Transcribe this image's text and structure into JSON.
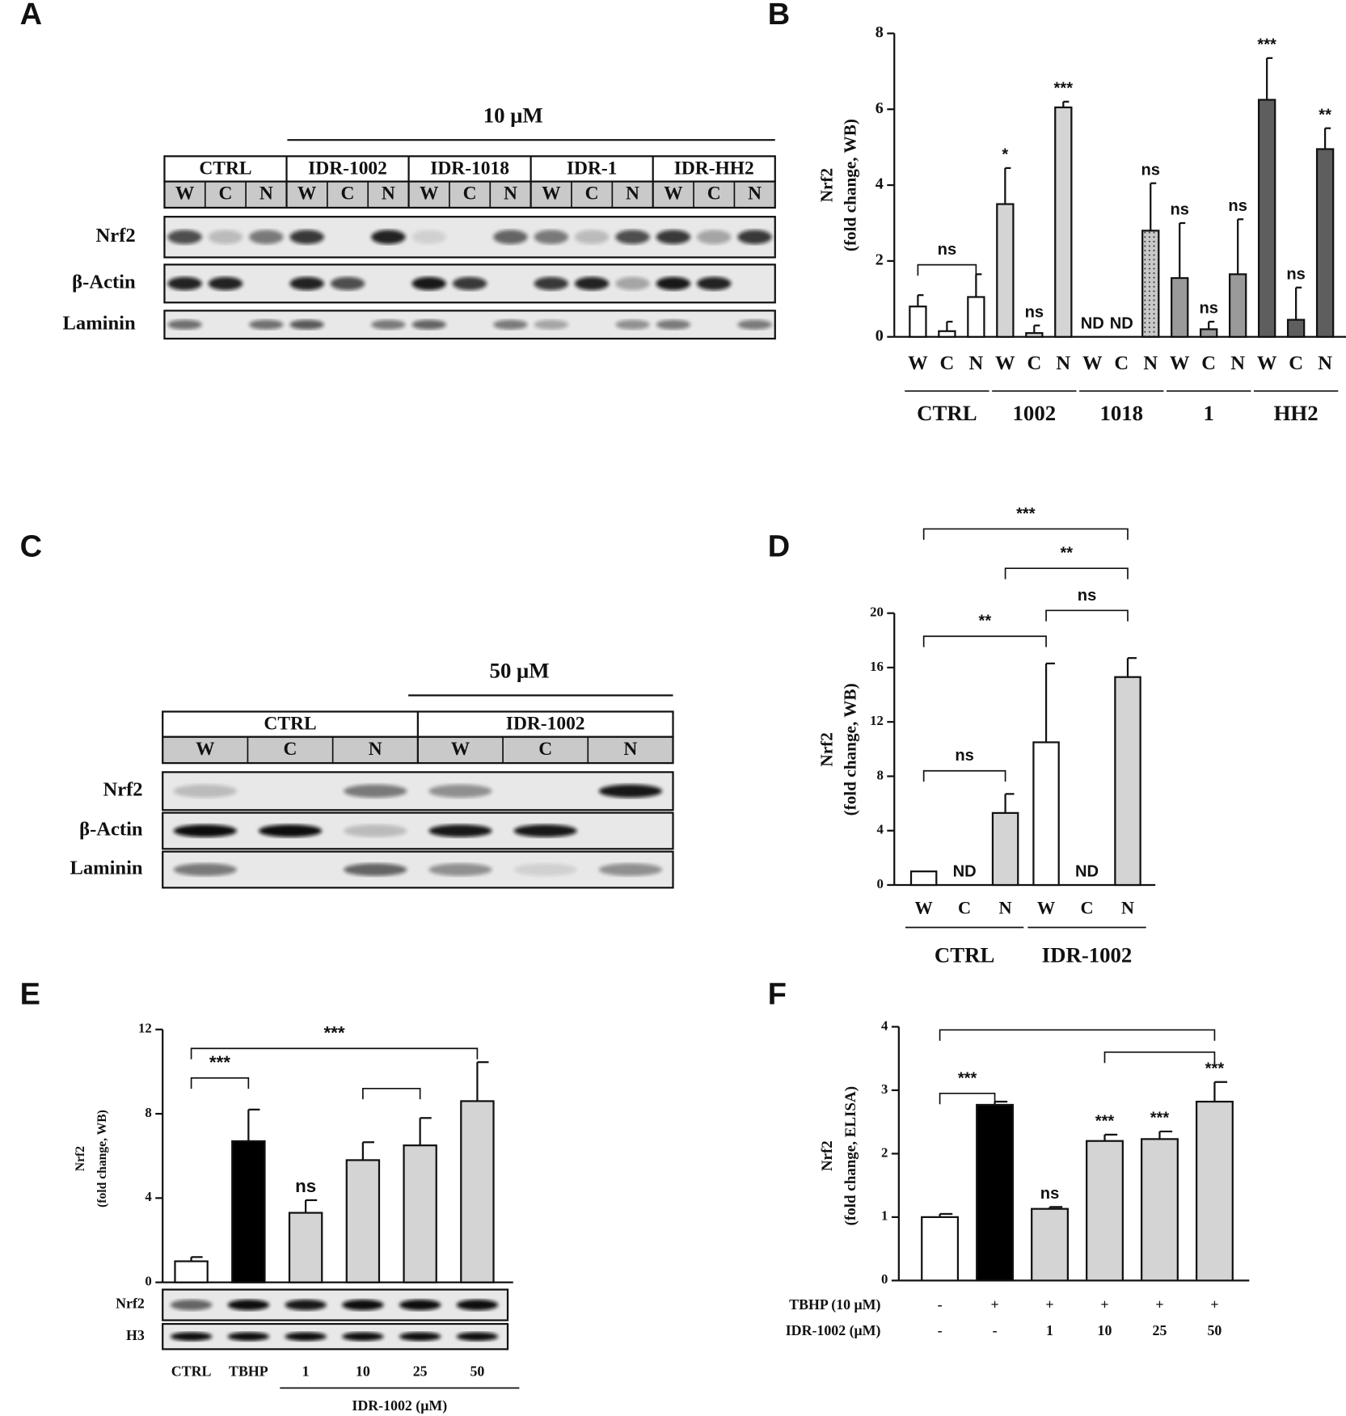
{
  "panels": [
    "A",
    "B",
    "C",
    "D",
    "E",
    "F"
  ],
  "blots": [
    {
      "concentration": "10 μM",
      "groups": [
        "CTRL",
        "IDR-1002",
        "IDR-1018",
        "IDR-1",
        "IDR-HH2"
      ],
      "lanes": [
        "W",
        "C",
        "N",
        "W",
        "C",
        "N",
        "W",
        "C",
        "N",
        "W",
        "C",
        "N",
        "W",
        "C",
        "N"
      ],
      "rows": [
        "Nrf2",
        "β-Actin",
        "Laminin"
      ]
    },
    {
      "concentration": "50 μM",
      "groups": [
        "CTRL",
        "IDR-1002"
      ],
      "lanes": [
        "W",
        "C",
        "N",
        "W",
        "C",
        "N"
      ],
      "rows": [
        "Nrf2",
        "β-Actin",
        "Laminin"
      ]
    },
    {
      "rows": [
        "Nrf2",
        "H3"
      ]
    }
  ],
  "chart_data": [
    {
      "type": "bar",
      "ylabel": [
        "Nrf2",
        "(fold change, WB)"
      ],
      "categories": [
        "W",
        "C",
        "N",
        "W",
        "C",
        "N",
        "W",
        "C",
        "N",
        "W",
        "C",
        "N",
        "W",
        "C",
        "N"
      ],
      "values": [
        0.8,
        0.15,
        1.05,
        3.5,
        0.1,
        6.05,
        null,
        null,
        2.8,
        1.55,
        0.2,
        1.65,
        6.25,
        0.45,
        4.95
      ],
      "errors": [
        0.3,
        0.25,
        0.6,
        0.95,
        0.2,
        0.15,
        null,
        null,
        1.25,
        1.45,
        0.2,
        1.45,
        1.1,
        0.85,
        0.55
      ],
      "colors": [
        "#ffffff",
        "#ffffff",
        "#ffffff",
        "#d4d4d4",
        "#d4d4d4",
        "#d4d4d4",
        "#c8c8c8",
        "#c8c8c8",
        "dots",
        "#9a9a9a",
        "#9a9a9a",
        "#9a9a9a",
        "#5e5e5e",
        "#5e5e5e",
        "#5e5e5e"
      ],
      "groups": [
        {
          "name": "CTRL",
          "from": 0,
          "to": 2
        },
        {
          "name": "1002",
          "from": 3,
          "to": 5
        },
        {
          "name": "1018",
          "from": 6,
          "to": 8
        },
        {
          "name": "1",
          "from": 9,
          "to": 11
        },
        {
          "name": "HH2",
          "from": 12,
          "to": 14
        }
      ],
      "annotations": [
        {
          "bar": 3,
          "text": "*"
        },
        {
          "bar": 4,
          "text": "ns"
        },
        {
          "bar": 5,
          "text": "***"
        },
        {
          "bar": 6,
          "text": "ND"
        },
        {
          "bar": 7,
          "text": "ND"
        },
        {
          "bar": 8,
          "text": "ns"
        },
        {
          "bar": 9,
          "text": "ns"
        },
        {
          "bar": 10,
          "text": "ns"
        },
        {
          "bar": 11,
          "text": "ns"
        },
        {
          "bar": 12,
          "text": "***"
        },
        {
          "bar": 13,
          "text": "ns"
        },
        {
          "bar": 14,
          "text": "**"
        }
      ],
      "brackets": [
        {
          "from": 0,
          "to": 2,
          "y": 1.9,
          "text": "ns"
        }
      ],
      "ylim": [
        0,
        8
      ],
      "yticks": [
        0,
        2,
        4,
        6,
        8
      ]
    },
    {
      "type": "bar",
      "ylabel": [
        "Nrf2",
        "(fold change, WB)"
      ],
      "categories": [
        "W",
        "C",
        "N",
        "W",
        "C",
        "N"
      ],
      "values": [
        1,
        null,
        5.3,
        10.5,
        null,
        15.3
      ],
      "errors": [
        null,
        null,
        1.4,
        5.8,
        null,
        1.4
      ],
      "colors": [
        "#ffffff",
        "#ffffff",
        "#d4d4d4",
        "#ffffff",
        "#ffffff",
        "#d4d4d4"
      ],
      "groups": [
        {
          "name": "CTRL",
          "from": 0,
          "to": 2
        },
        {
          "name": "IDR-1002",
          "from": 3,
          "to": 5
        }
      ],
      "annotations": [
        {
          "bar": 1,
          "text": "ND"
        },
        {
          "bar": 4,
          "text": "ND"
        }
      ],
      "brackets": [
        {
          "from": 0,
          "to": 2,
          "y": 8.4,
          "text": "ns"
        },
        {
          "from": 0,
          "to": 3,
          "y": 18.3,
          "text": "**"
        },
        {
          "from": 3,
          "to": 5,
          "y": 20.2,
          "text": "ns"
        },
        {
          "from": 2,
          "to": 5,
          "y": 23.3,
          "text": "**"
        },
        {
          "from": 0,
          "to": 5,
          "y": 26.2,
          "text": "***"
        }
      ],
      "ylim": [
        0,
        20
      ],
      "yticks": [
        0,
        4,
        8,
        12,
        16,
        20
      ]
    },
    {
      "type": "bar",
      "ylabel": [
        "Nrf2",
        "(fold change, WB)"
      ],
      "categories": [
        "CTRL",
        "TBHP",
        "1",
        "10",
        "25",
        "50"
      ],
      "values": [
        1.0,
        6.7,
        3.3,
        5.8,
        6.5,
        8.6
      ],
      "errors": [
        0.2,
        1.5,
        0.6,
        0.85,
        1.3,
        1.85
      ],
      "colors": [
        "#ffffff",
        "#000000",
        "#d4d4d4",
        "#d4d4d4",
        "#d4d4d4",
        "#d4d4d4"
      ],
      "groups": [
        {
          "name": "IDR-1002 (μM)",
          "from": 2,
          "to": 5
        }
      ],
      "annotations": [
        {
          "bar": 2,
          "text": "ns"
        }
      ],
      "brackets": [
        {
          "from": 0,
          "to": 1,
          "y": 9.7,
          "text": "***"
        },
        {
          "from": 0,
          "to": 5,
          "y": 11.1,
          "text": "***"
        },
        {
          "from": 3,
          "to": 4,
          "y": 9.2
        }
      ],
      "ylim": [
        0,
        12
      ],
      "yticks": [
        0,
        4,
        8,
        12
      ]
    },
    {
      "type": "bar",
      "ylabel": [
        "Nrf2",
        "(fold change, ELISA)"
      ],
      "values": [
        1.0,
        2.77,
        1.13,
        2.2,
        2.23,
        2.82
      ],
      "errors": [
        0.05,
        0.05,
        0.03,
        0.1,
        0.12,
        0.31
      ],
      "colors": [
        "#ffffff",
        "#000000",
        "#d4d4d4",
        "#d4d4d4",
        "#d4d4d4",
        "#d4d4d4"
      ],
      "condition_rows": [
        {
          "name": "TBHP (10 μM)",
          "values": [
            "-",
            "+",
            "+",
            "+",
            "+",
            "+"
          ]
        },
        {
          "name": "IDR-1002 (μM)",
          "values": [
            "-",
            "-",
            "1",
            "10",
            "25",
            "50"
          ]
        }
      ],
      "annotations": [
        {
          "bar": 2,
          "text": "ns"
        },
        {
          "bar": 3,
          "text": "***"
        },
        {
          "bar": 4,
          "text": "***"
        },
        {
          "bar": 5,
          "text": "***"
        }
      ],
      "brackets": [
        {
          "from": 0,
          "to": 1,
          "y": 2.95,
          "text": "***"
        },
        {
          "from": 0,
          "to": 5,
          "y": 3.95
        },
        {
          "from": 3,
          "to": 5,
          "y": 3.6
        }
      ],
      "ylim": [
        0,
        4
      ],
      "yticks": [
        0,
        1,
        2,
        3,
        4
      ]
    }
  ]
}
